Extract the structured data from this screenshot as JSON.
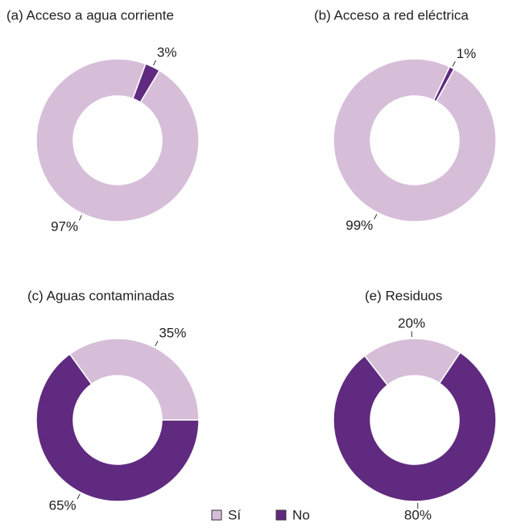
{
  "chart_data": [
    {
      "type": "pie",
      "title": "(a) Acceso a agua corriente",
      "categories": [
        "Sí",
        "No"
      ],
      "values": [
        97,
        3
      ],
      "value_labels": [
        "97%",
        "3%"
      ],
      "colors": [
        "#d6bed9",
        "#5f2a7f"
      ]
    },
    {
      "type": "pie",
      "title": "(b) Acceso a red eléctrica",
      "categories": [
        "Sí",
        "No"
      ],
      "values": [
        99,
        1
      ],
      "value_labels": [
        "99%",
        "1%"
      ],
      "colors": [
        "#d6bed9",
        "#5f2a7f"
      ]
    },
    {
      "type": "pie",
      "title": "(c) Aguas contaminadas",
      "categories": [
        "Sí",
        "No"
      ],
      "values": [
        35,
        65
      ],
      "value_labels": [
        "35%",
        "65%"
      ],
      "colors": [
        "#d6bed9",
        "#5f2a7f"
      ]
    },
    {
      "type": "pie",
      "title": "(e) Residuos",
      "categories": [
        "Sí",
        "No"
      ],
      "values": [
        20,
        80
      ],
      "value_labels": [
        "20%",
        "80%"
      ],
      "colors": [
        "#d6bed9",
        "#5f2a7f"
      ]
    }
  ]
}
